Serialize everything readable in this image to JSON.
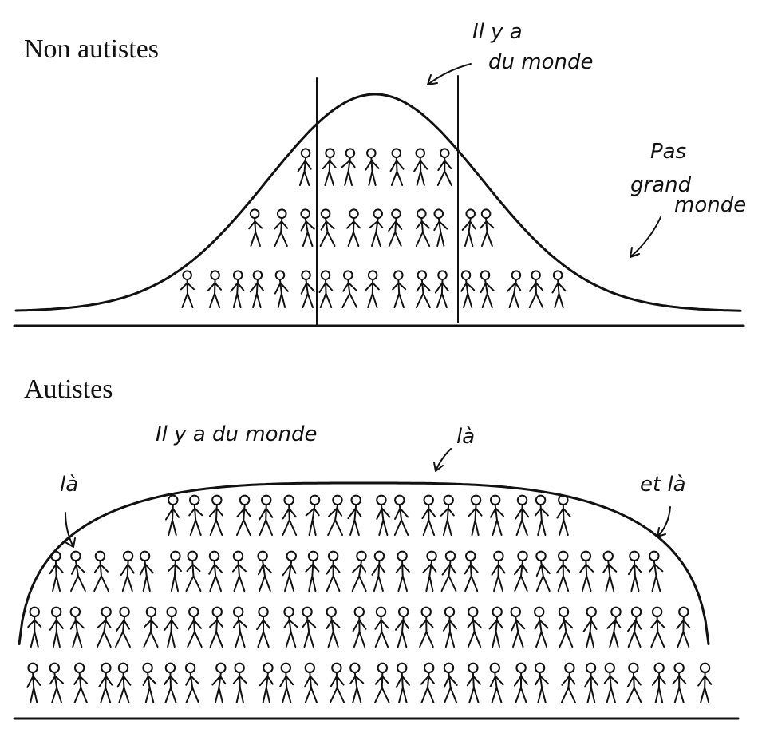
{
  "panels": [
    {
      "title": "Non autistes",
      "annotations": [
        {
          "lines": [
            "Il y a",
            "du monde"
          ]
        },
        {
          "lines": [
            "Pas",
            "grand",
            "monde"
          ]
        }
      ]
    },
    {
      "title": "Autistes",
      "annotations": [
        {
          "lines": [
            "Il y a du monde"
          ]
        },
        {
          "lines": [
            "là"
          ]
        },
        {
          "lines": [
            "là"
          ]
        },
        {
          "lines": [
            "et là"
          ]
        }
      ]
    }
  ]
}
